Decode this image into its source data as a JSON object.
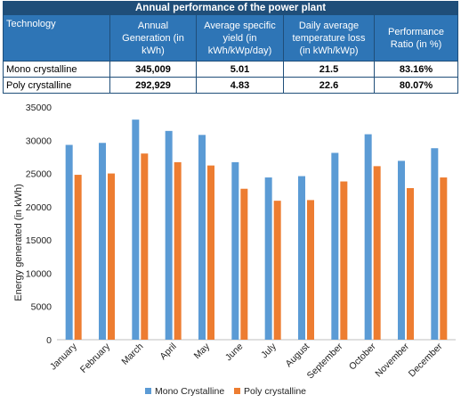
{
  "table": {
    "title": "Annual performance of the power plant",
    "headers": [
      [
        "Technology"
      ],
      [
        "Annual",
        "Generation (in",
        "kWh)"
      ],
      [
        "Average specific",
        "yield (in",
        "kWh/kWp/day)"
      ],
      [
        "Daily average",
        "temperature loss",
        "(in kWh/kWp)"
      ],
      [
        "Performance",
        "Ratio (in %)"
      ]
    ],
    "rows": [
      [
        "Mono crystalline",
        "345,009",
        "5.01",
        "21.5",
        "83.16%"
      ],
      [
        "Poly crystalline",
        "292,929",
        "4.83",
        "22.6",
        "80.07%"
      ]
    ]
  },
  "chart_data": {
    "type": "bar",
    "title": "",
    "xlabel": "",
    "ylabel": "Energy generated (in kWh)",
    "ylim": [
      0,
      35000
    ],
    "yticks": [
      "0",
      "5000",
      "10000",
      "15000",
      "20000",
      "25000",
      "30000",
      "35000"
    ],
    "grid": false,
    "legend_position": "bottom",
    "categories": [
      "January",
      "February",
      "March",
      "April",
      "May",
      "June",
      "July",
      "August",
      "September",
      "October",
      "November",
      "December"
    ],
    "series": [
      {
        "name": "Mono Crystalline",
        "color": "#5b9bd5",
        "values": [
          29300,
          29600,
          33100,
          31400,
          30800,
          26700,
          24400,
          24600,
          28100,
          30900,
          26900,
          28800
        ]
      },
      {
        "name": "Poly crystalline",
        "color": "#ed7d31",
        "values": [
          24800,
          25000,
          28000,
          26700,
          26200,
          22700,
          20900,
          21000,
          23800,
          26100,
          22800,
          24400
        ]
      }
    ]
  }
}
